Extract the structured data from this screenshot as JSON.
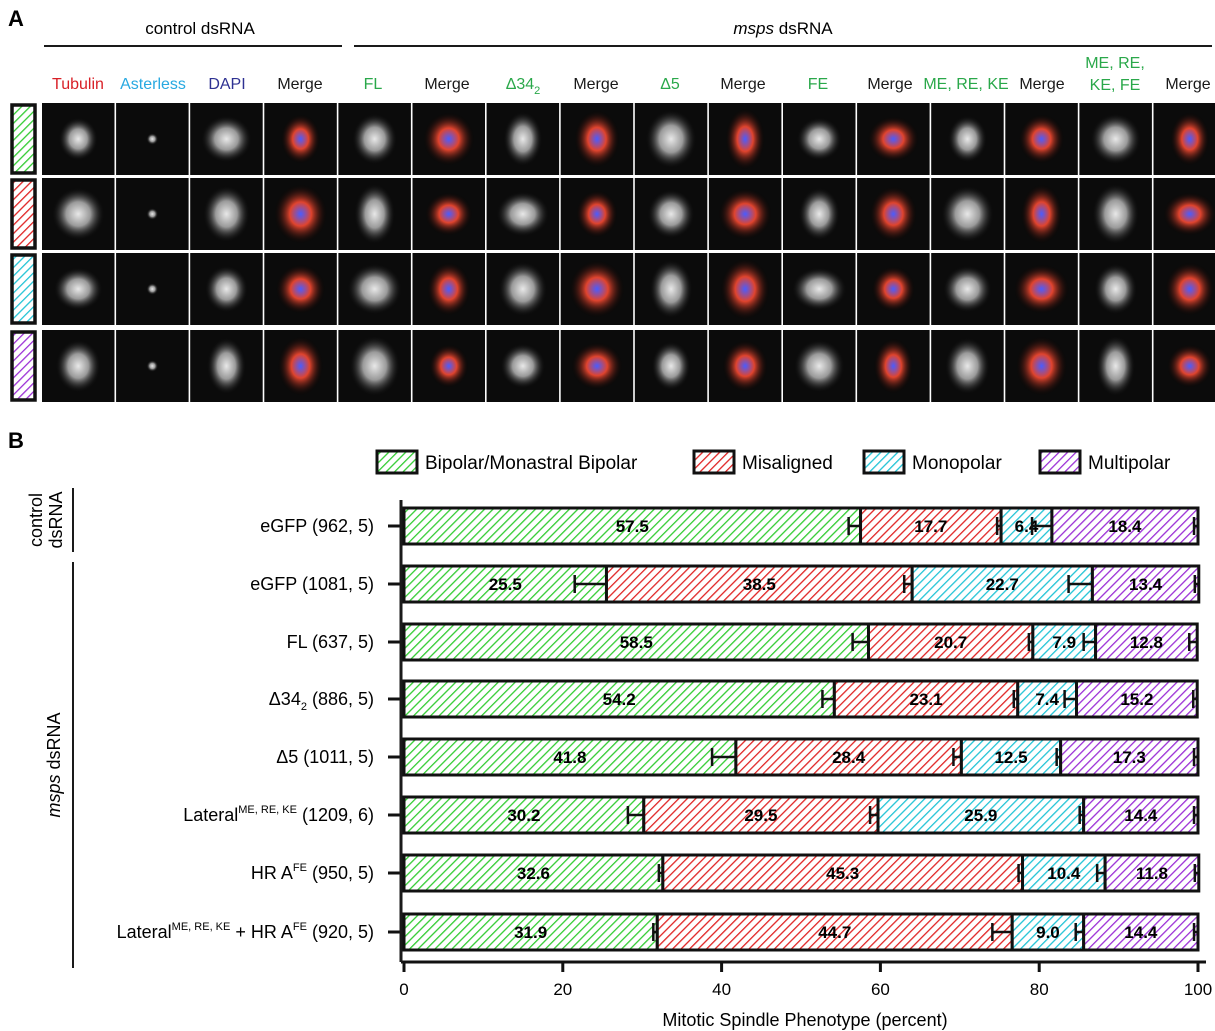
{
  "panel_a": {
    "letter": "A",
    "group_headers": {
      "control": "control dsRNA",
      "msps": "msps",
      "msps_suffix": " dsRNA"
    },
    "channel_labels": [
      {
        "text": "Tubulin",
        "color": "#d81f26"
      },
      {
        "text": "Asterless",
        "color": "#27a9e1"
      },
      {
        "text": "DAPI",
        "color": "#2e3192"
      },
      {
        "text": "Merge",
        "color": "#1a1a1a"
      },
      {
        "text": "FL",
        "color": "#2aa84a"
      },
      {
        "text": "Merge",
        "color": "#1a1a1a"
      },
      {
        "text": "Δ34",
        "sub": "2",
        "color": "#2aa84a"
      },
      {
        "text": "Merge",
        "color": "#1a1a1a"
      },
      {
        "text": "Δ5",
        "color": "#2aa84a"
      },
      {
        "text": "Merge",
        "color": "#1a1a1a"
      },
      {
        "text": "FE",
        "color": "#2aa84a"
      },
      {
        "text": "Merge",
        "color": "#1a1a1a"
      },
      {
        "text": "ME, RE, KE",
        "color": "#2aa84a"
      },
      {
        "text": "Merge",
        "color": "#1a1a1a"
      },
      {
        "lines": [
          "ME, RE,",
          "KE, FE"
        ],
        "color": "#2aa84a"
      },
      {
        "text": "Merge",
        "color": "#1a1a1a"
      }
    ],
    "row_phenotypes": [
      "bipolar",
      "misaligned",
      "monopolar",
      "multipolar"
    ]
  },
  "panel_b_letter": "B",
  "group_labels": {
    "control": [
      "control",
      "dsRNA"
    ],
    "msps": "msps",
    "msps_suffix": " dsRNA"
  },
  "colors": {
    "bipolar": "#33cc33",
    "misaligned": "#e02424",
    "monopolar": "#22c4d6",
    "multipolar": "#9b2fd6"
  },
  "chart_data": {
    "type": "bar",
    "orientation": "horizontal",
    "stacked": true,
    "xlabel": "Mitotic Spindle Phenotype (percent)",
    "xlim": [
      0,
      100
    ],
    "xticks": [
      0,
      20,
      40,
      60,
      80,
      100
    ],
    "legend_position": "top",
    "categories": [
      {
        "main": "eGFP (962, 5)"
      },
      {
        "main": "eGFP (1081, 5)"
      },
      {
        "main": "FL (637, 5)"
      },
      {
        "pre": "Δ34",
        "sub": "2",
        "post": " (886, 5)"
      },
      {
        "main": "Δ5 (1011, 5)"
      },
      {
        "pre": "Lateral",
        "sup": "ME, RE, KE",
        "post": " (1209, 6)"
      },
      {
        "pre": "HR A",
        "sup": "FE",
        "post": " (950, 5)"
      },
      {
        "pre": "Lateral",
        "sup": "ME, RE, KE",
        "mid": " + HR A",
        "sup2": "FE",
        "post": " (920, 5)"
      }
    ],
    "series": [
      {
        "key": "bipolar",
        "name": "Bipolar/Monastral Bipolar",
        "values": [
          57.5,
          25.5,
          58.5,
          54.2,
          41.8,
          30.2,
          32.6,
          31.9
        ],
        "errors": [
          1.5,
          4.0,
          2.0,
          1.5,
          3.0,
          2.0,
          0.5,
          0.5
        ]
      },
      {
        "key": "misaligned",
        "name": "Misaligned",
        "values": [
          17.7,
          38.5,
          20.7,
          23.1,
          28.4,
          29.5,
          45.3,
          44.7
        ],
        "errors": [
          0.5,
          1.0,
          0.5,
          0.5,
          1.0,
          1.0,
          0.5,
          2.5
        ]
      },
      {
        "key": "monopolar",
        "name": "Monopolar",
        "values": [
          6.4,
          22.7,
          7.9,
          7.4,
          12.5,
          25.9,
          10.4,
          9.0
        ],
        "errors": [
          2.5,
          3.0,
          1.5,
          1.5,
          0.5,
          0.5,
          1.0,
          1.0
        ]
      },
      {
        "key": "multipolar",
        "name": "Multipolar",
        "values": [
          18.4,
          13.4,
          12.8,
          15.2,
          17.3,
          14.4,
          11.8,
          14.4
        ],
        "errors": [
          0.5,
          0.5,
          1.0,
          0.5,
          0.5,
          0.5,
          0.5,
          0.5
        ]
      }
    ]
  }
}
